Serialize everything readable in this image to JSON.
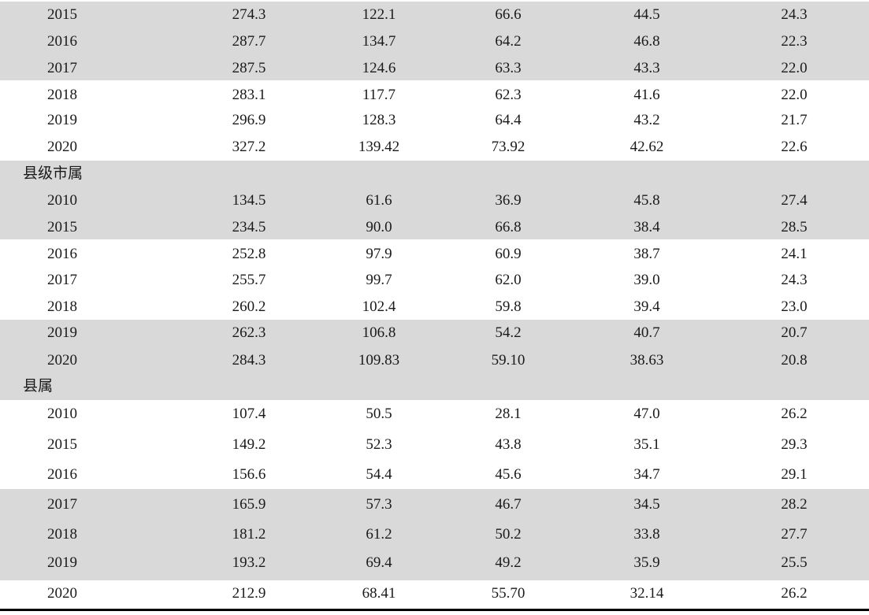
{
  "table": {
    "groups": [
      {
        "label": "",
        "rows": [
          {
            "year": "2015",
            "values": [
              "274.3",
              "122.1",
              "66.6",
              "44.5",
              "24.3"
            ]
          },
          {
            "year": "2016",
            "values": [
              "287.7",
              "134.7",
              "64.2",
              "46.8",
              "22.3"
            ]
          },
          {
            "year": "2017",
            "values": [
              "287.5",
              "124.6",
              "63.3",
              "43.3",
              "22.0"
            ]
          },
          {
            "year": "2018",
            "values": [
              "283.1",
              "117.7",
              "62.3",
              "41.6",
              "22.0"
            ]
          },
          {
            "year": "2019",
            "values": [
              "296.9",
              "128.3",
              "64.4",
              "43.2",
              "21.7"
            ]
          },
          {
            "year": "2020",
            "values": [
              "327.2",
              "139.42",
              "73.92",
              "42.62",
              "22.6"
            ]
          }
        ]
      },
      {
        "label": "县级市属",
        "rows": [
          {
            "year": "2010",
            "values": [
              "134.5",
              "61.6",
              "36.9",
              "45.8",
              "27.4"
            ]
          },
          {
            "year": "2015",
            "values": [
              "234.5",
              "90.0",
              "66.8",
              "38.4",
              "28.5"
            ]
          },
          {
            "year": "2016",
            "values": [
              "252.8",
              "97.9",
              "60.9",
              "38.7",
              "24.1"
            ]
          },
          {
            "year": "2017",
            "values": [
              "255.7",
              "99.7",
              "62.0",
              "39.0",
              "24.3"
            ]
          },
          {
            "year": "2018",
            "values": [
              "260.2",
              "102.4",
              "59.8",
              "39.4",
              "23.0"
            ]
          },
          {
            "year": "2019",
            "values": [
              "262.3",
              "106.8",
              "54.2",
              "40.7",
              "20.7"
            ]
          },
          {
            "year": "2020",
            "values": [
              "284.3",
              "109.83",
              "59.10",
              "38.63",
              "20.8"
            ]
          }
        ]
      },
      {
        "label": "县属",
        "rows": [
          {
            "year": "2010",
            "values": [
              "107.4",
              "50.5",
              "28.1",
              "47.0",
              "26.2"
            ]
          },
          {
            "year": "2015",
            "values": [
              "149.2",
              "52.3",
              "43.8",
              "35.1",
              "29.3"
            ]
          },
          {
            "year": "2016",
            "values": [
              "156.6",
              "54.4",
              "45.6",
              "34.7",
              "29.1"
            ]
          },
          {
            "year": "2017",
            "values": [
              "165.9",
              "57.3",
              "46.7",
              "34.5",
              "28.2"
            ]
          },
          {
            "year": "2018",
            "values": [
              "181.2",
              "61.2",
              "50.2",
              "33.8",
              "27.7"
            ]
          },
          {
            "year": "2019",
            "values": [
              "193.2",
              "69.4",
              "49.2",
              "35.9",
              "25.5"
            ]
          },
          {
            "year": "2020",
            "values": [
              "212.9",
              "68.41",
              "55.70",
              "32.14",
              "26.2"
            ]
          }
        ]
      }
    ]
  },
  "colors": {
    "band": "#d9d9d9",
    "text": "#1a1a1a",
    "rule": "#000000"
  }
}
